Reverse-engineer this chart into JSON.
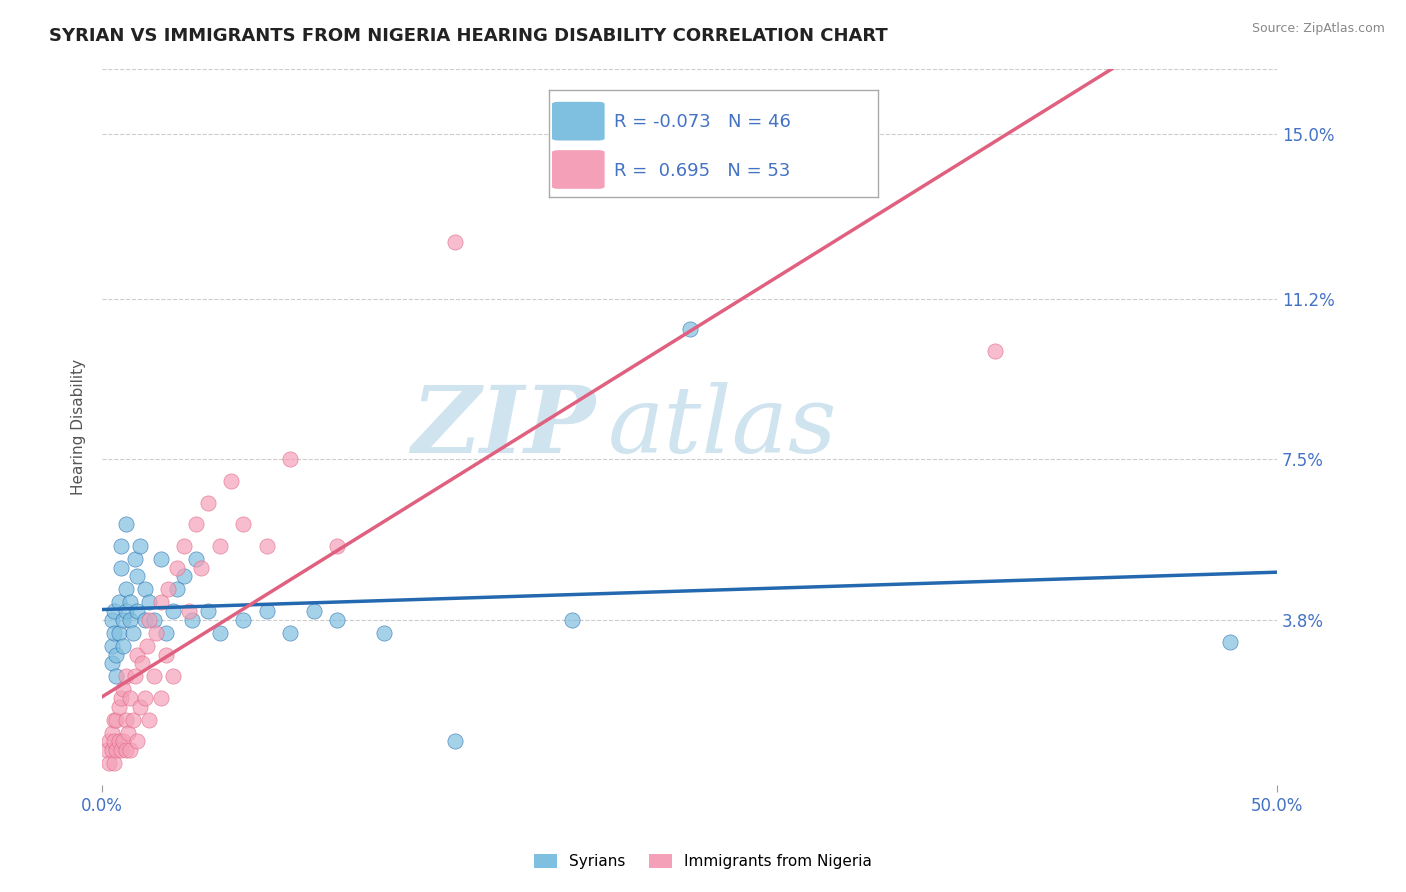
{
  "title": "SYRIAN VS IMMIGRANTS FROM NIGERIA HEARING DISABILITY CORRELATION CHART",
  "source": "Source: ZipAtlas.com",
  "ylabel": "Hearing Disability",
  "xlim": [
    0.0,
    0.5
  ],
  "ylim": [
    0.0,
    0.165
  ],
  "yticks": [
    0.038,
    0.075,
    0.112,
    0.15
  ],
  "ytick_labels": [
    "3.8%",
    "7.5%",
    "11.2%",
    "15.0%"
  ],
  "xtick_labels": [
    "0.0%",
    "50.0%"
  ],
  "legend_R1": "-0.073",
  "legend_N1": "46",
  "legend_R2": "0.695",
  "legend_N2": "53",
  "color_syrian": "#7fbfdf",
  "color_nigeria": "#f4a0b8",
  "color_line_syrian": "#2469b0",
  "color_line_nigeria": "#e06080",
  "watermark_zip": "ZIP",
  "watermark_atlas": "atlas",
  "watermark_color": "#d0e4f0",
  "background_color": "#ffffff",
  "grid_color": "#cccccc",
  "syrians_x": [
    0.004,
    0.004,
    0.004,
    0.005,
    0.005,
    0.006,
    0.006,
    0.007,
    0.007,
    0.008,
    0.008,
    0.009,
    0.009,
    0.01,
    0.01,
    0.01,
    0.012,
    0.012,
    0.013,
    0.014,
    0.015,
    0.015,
    0.016,
    0.018,
    0.018,
    0.02,
    0.022,
    0.025,
    0.027,
    0.03,
    0.032,
    0.035,
    0.038,
    0.04,
    0.045,
    0.05,
    0.06,
    0.07,
    0.08,
    0.09,
    0.1,
    0.12,
    0.15,
    0.2,
    0.25,
    0.48
  ],
  "syrians_y": [
    0.038,
    0.032,
    0.028,
    0.035,
    0.04,
    0.03,
    0.025,
    0.042,
    0.035,
    0.05,
    0.055,
    0.038,
    0.032,
    0.045,
    0.04,
    0.06,
    0.038,
    0.042,
    0.035,
    0.052,
    0.04,
    0.048,
    0.055,
    0.038,
    0.045,
    0.042,
    0.038,
    0.052,
    0.035,
    0.04,
    0.045,
    0.048,
    0.038,
    0.052,
    0.04,
    0.035,
    0.038,
    0.04,
    0.035,
    0.04,
    0.038,
    0.035,
    0.01,
    0.038,
    0.105,
    0.033
  ],
  "nigeria_x": [
    0.002,
    0.003,
    0.003,
    0.004,
    0.004,
    0.005,
    0.005,
    0.005,
    0.006,
    0.006,
    0.007,
    0.007,
    0.008,
    0.008,
    0.009,
    0.009,
    0.01,
    0.01,
    0.01,
    0.011,
    0.012,
    0.012,
    0.013,
    0.014,
    0.015,
    0.015,
    0.016,
    0.017,
    0.018,
    0.019,
    0.02,
    0.02,
    0.022,
    0.023,
    0.025,
    0.025,
    0.027,
    0.028,
    0.03,
    0.032,
    0.035,
    0.037,
    0.04,
    0.042,
    0.045,
    0.05,
    0.055,
    0.06,
    0.07,
    0.08,
    0.1,
    0.15,
    0.38
  ],
  "nigeria_y": [
    0.008,
    0.005,
    0.01,
    0.008,
    0.012,
    0.005,
    0.01,
    0.015,
    0.008,
    0.015,
    0.01,
    0.018,
    0.008,
    0.02,
    0.01,
    0.022,
    0.008,
    0.015,
    0.025,
    0.012,
    0.008,
    0.02,
    0.015,
    0.025,
    0.01,
    0.03,
    0.018,
    0.028,
    0.02,
    0.032,
    0.015,
    0.038,
    0.025,
    0.035,
    0.02,
    0.042,
    0.03,
    0.045,
    0.025,
    0.05,
    0.055,
    0.04,
    0.06,
    0.05,
    0.065,
    0.055,
    0.07,
    0.06,
    0.055,
    0.075,
    0.055,
    0.125,
    0.1
  ],
  "title_fontsize": 13,
  "axis_label_fontsize": 11,
  "tick_fontsize": 12,
  "legend_fontsize": 13
}
